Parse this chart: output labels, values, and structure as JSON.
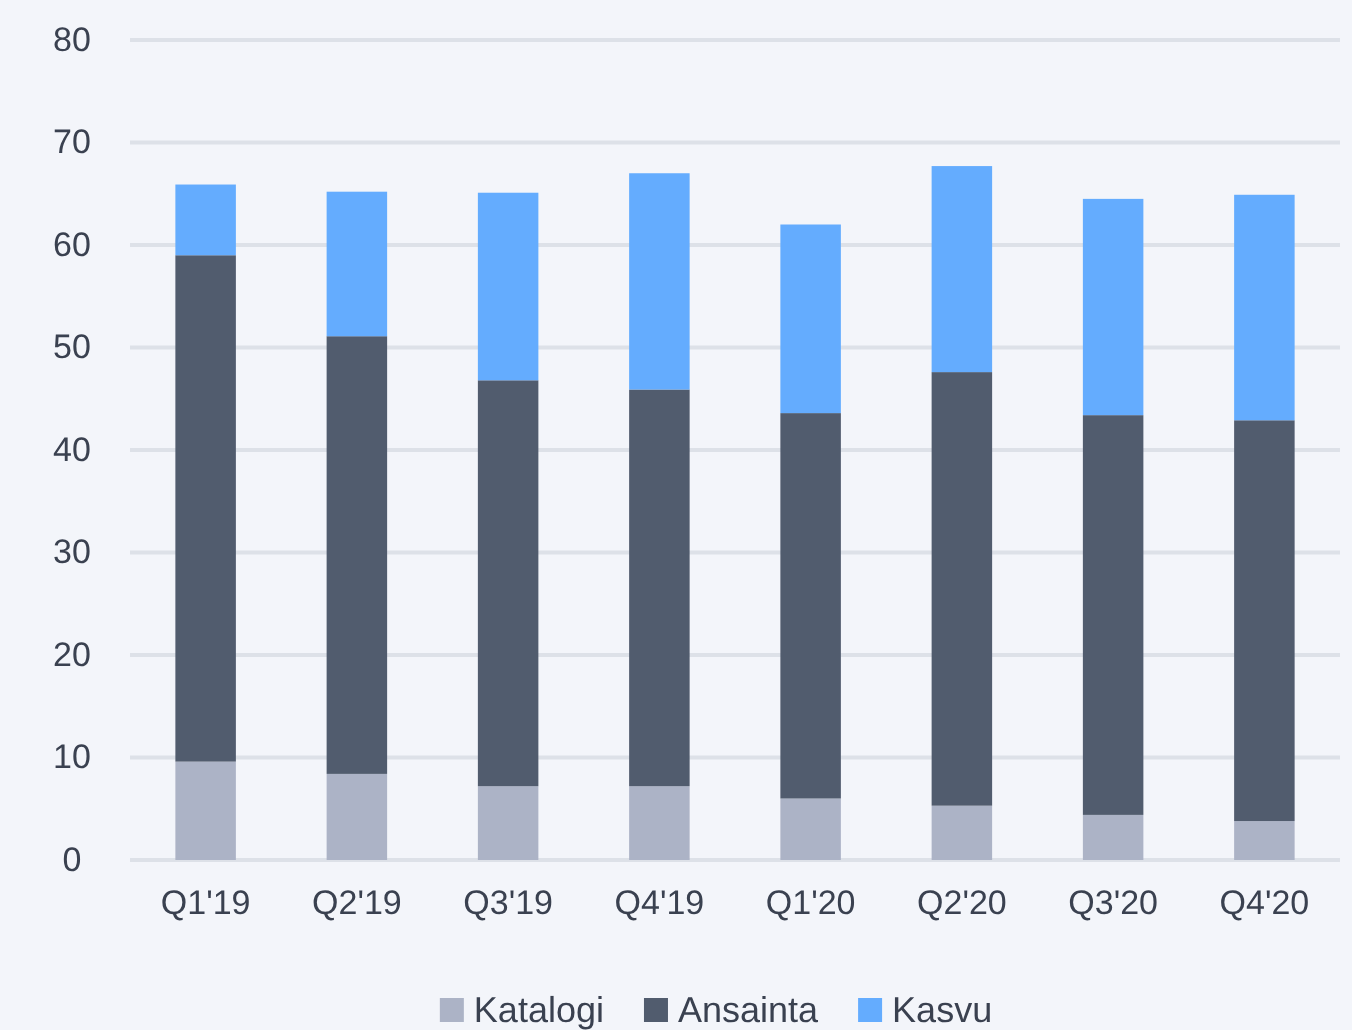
{
  "chart_data": {
    "type": "bar",
    "stacked": true,
    "categories": [
      "Q1'19",
      "Q2'19",
      "Q3'19",
      "Q4'19",
      "Q1'20",
      "Q2'20",
      "Q3'20",
      "Q4'20"
    ],
    "series": [
      {
        "name": "Katalogi",
        "color": "#acb3c6",
        "values": [
          9.6,
          8.4,
          7.2,
          7.2,
          6.0,
          5.3,
          4.4,
          3.8
        ]
      },
      {
        "name": "Ansainta",
        "color": "#515c6e",
        "values": [
          49.4,
          42.7,
          39.6,
          38.7,
          37.6,
          42.3,
          39.0,
          39.1
        ]
      },
      {
        "name": "Kasvu",
        "color": "#64acfe",
        "values": [
          6.9,
          14.1,
          18.3,
          21.1,
          18.4,
          20.1,
          21.1,
          22.0
        ]
      }
    ],
    "ylim": [
      0,
      80
    ],
    "yticks": [
      0,
      10,
      20,
      30,
      40,
      50,
      60,
      70,
      80
    ],
    "grid": "y",
    "legend": "bottom"
  }
}
